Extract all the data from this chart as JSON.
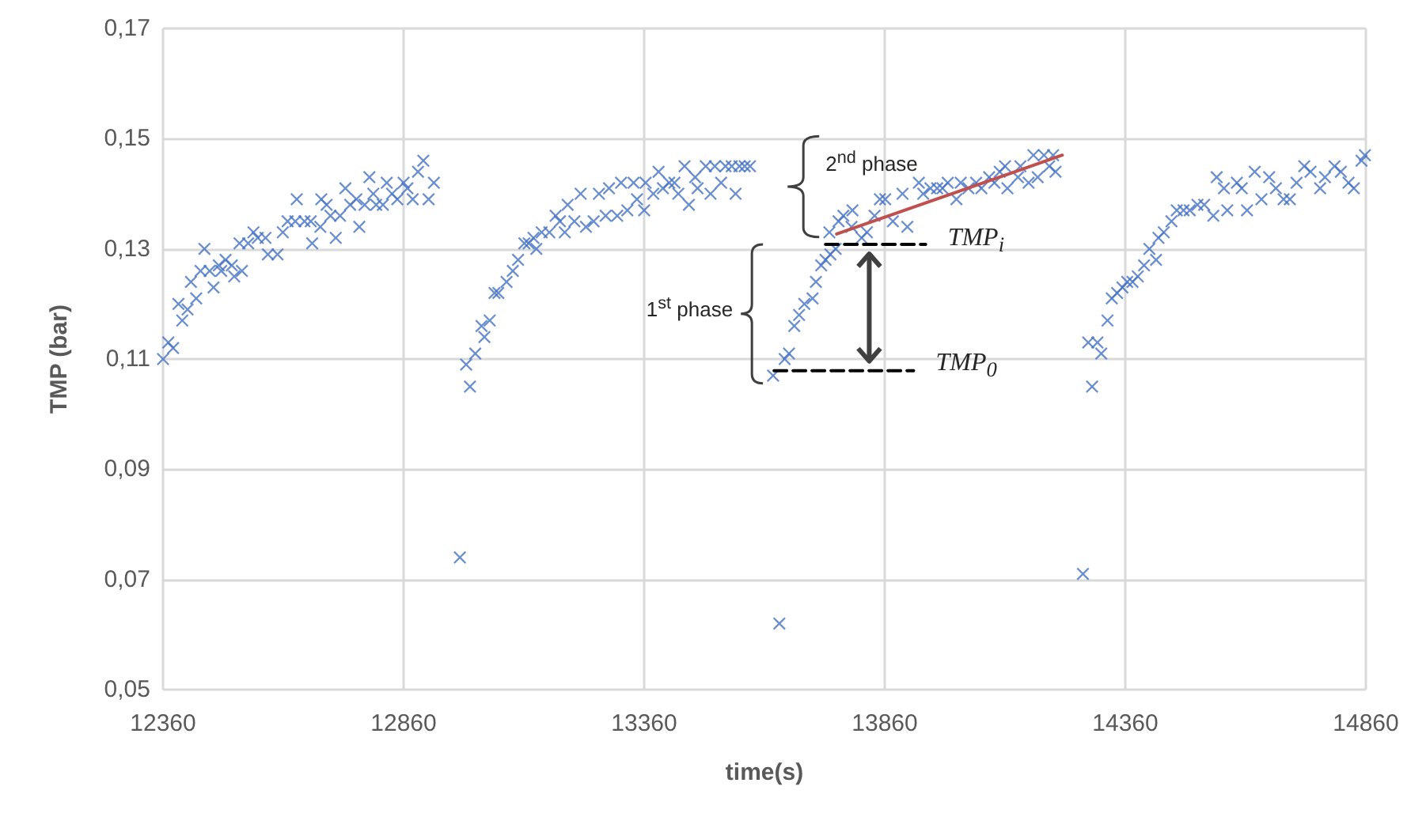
{
  "chart_data": {
    "type": "scatter",
    "xlabel": "time(s)",
    "ylabel": "TMP (bar)",
    "xlim": [
      12360,
      14860
    ],
    "xticks": [
      12360,
      12860,
      13360,
      13860,
      14360,
      14860
    ],
    "ylim": [
      0.05,
      0.17
    ],
    "yticks": [
      {
        "value": 0.05,
        "label": "0,05"
      },
      {
        "value": 0.07,
        "label": "0,07"
      },
      {
        "value": 0.09,
        "label": "0,09"
      },
      {
        "value": 0.11,
        "label": "0,11"
      },
      {
        "value": 0.13,
        "label": "0,13"
      },
      {
        "value": 0.15,
        "label": "0,15"
      },
      {
        "value": 0.17,
        "label": "0,17"
      }
    ],
    "grid": true,
    "marker": "cross",
    "series": [
      {
        "color": "#4472c4",
        "x": [
          12360,
          12371,
          12381,
          12400,
          12392,
          12411,
          12429,
          12418,
          12446,
          12438,
          12465,
          12457,
          12476,
          12490,
          12481,
          12508,
          12503,
          12524,
          12519,
          12537,
          12548,
          12557,
          12573,
          12578,
          12598,
          12609,
          12619,
          12638,
          12635,
          12654,
          12670,
          12667,
          12687,
          12689,
          12700,
          12708,
          12719,
          12728,
          12739,
          12749,
          12768,
          12762,
          12779,
          12789,
          12797,
          12803,
          12817,
          12825,
          12836,
          12847,
          12860,
          12868,
          12879,
          12890,
          12901,
          12912,
          12923,
          12977,
          12998,
          12990,
          13009,
          13028,
          13022,
          13039,
          13049,
          13057,
          13074,
          13087,
          13098,
          13111,
          13120,
          13136,
          13130,
          13147,
          13163,
          13176,
          13185,
          13195,
          13201,
          13215,
          13228,
          13239,
          13255,
          13266,
          13280,
          13287,
          13304,
          13312,
          13325,
          13338,
          13345,
          13360,
          13363,
          13379,
          13390,
          13399,
          13412,
          13423,
          13431,
          13444,
          13453,
          13466,
          13471,
          13488,
          13498,
          13507,
          13520,
          13529,
          13542,
          13550,
          13558,
          13569,
          13580,
          13641,
          13628,
          13652,
          13661,
          13672,
          13682,
          13693,
          13710,
          13717,
          13728,
          13737,
          13747,
          13758,
          13745,
          13764,
          13774,
          13793,
          13791,
          13812,
          13823,
          13839,
          13850,
          13861,
          13877,
          13897,
          13907,
          13931,
          13940,
          13955,
          13969,
          13980,
          13991,
          14009,
          14018,
          14034,
          14050,
          14061,
          14077,
          14088,
          14099,
          14110,
          14115,
          14137,
          14142,
          14159,
          14169,
          14178,
          14191,
          14202,
          14210,
          14215,
          14272,
          14291,
          14283,
          14310,
          14302,
          14323,
          14332,
          14343,
          14354,
          14364,
          14375,
          14386,
          14399,
          14410,
          14424,
          14429,
          14440,
          14456,
          14467,
          14481,
          14494,
          14510,
          14524,
          14543,
          14550,
          14565,
          14572,
          14592,
          14602,
          14613,
          14629,
          14643,
          14659,
          14673,
          14689,
          14702,
          14716,
          14732,
          14745,
          14765,
          14775,
          14795,
          14808,
          14824,
          14835,
          14851,
          14858
        ],
        "values": [
          0.11,
          0.113,
          0.112,
          0.117,
          0.12,
          0.119,
          0.121,
          0.124,
          0.13,
          0.126,
          0.123,
          0.126,
          0.127,
          0.128,
          0.126,
          0.125,
          0.127,
          0.126,
          0.131,
          0.131,
          0.133,
          0.132,
          0.132,
          0.129,
          0.129,
          0.133,
          0.135,
          0.139,
          0.135,
          0.135,
          0.131,
          0.135,
          0.134,
          0.139,
          0.138,
          0.136,
          0.132,
          0.136,
          0.141,
          0.138,
          0.134,
          0.139,
          0.138,
          0.143,
          0.14,
          0.138,
          0.138,
          0.142,
          0.14,
          0.139,
          0.142,
          0.141,
          0.139,
          0.144,
          0.146,
          0.139,
          0.142,
          0.074,
          0.105,
          0.109,
          0.111,
          0.114,
          0.116,
          0.117,
          0.122,
          0.122,
          0.124,
          0.126,
          0.128,
          0.131,
          0.131,
          0.13,
          0.132,
          0.133,
          0.133,
          0.136,
          0.135,
          0.133,
          0.138,
          0.135,
          0.14,
          0.134,
          0.135,
          0.14,
          0.136,
          0.141,
          0.136,
          0.142,
          0.137,
          0.142,
          0.139,
          0.137,
          0.142,
          0.14,
          0.144,
          0.141,
          0.142,
          0.142,
          0.14,
          0.145,
          0.138,
          0.143,
          0.141,
          0.145,
          0.14,
          0.145,
          0.142,
          0.145,
          0.145,
          0.14,
          0.145,
          0.145,
          0.145,
          0.062,
          0.107,
          0.11,
          0.111,
          0.116,
          0.118,
          0.12,
          0.121,
          0.124,
          0.127,
          0.128,
          0.129,
          0.13,
          0.133,
          0.135,
          0.136,
          0.137,
          0.134,
          0.132,
          0.133,
          0.136,
          0.139,
          0.139,
          0.135,
          0.14,
          0.134,
          0.142,
          0.14,
          0.141,
          0.141,
          0.141,
          0.142,
          0.139,
          0.142,
          0.141,
          0.142,
          0.141,
          0.143,
          0.142,
          0.144,
          0.145,
          0.141,
          0.143,
          0.145,
          0.142,
          0.147,
          0.143,
          0.147,
          0.145,
          0.147,
          0.144,
          0.071,
          0.105,
          0.113,
          0.111,
          0.113,
          0.117,
          0.121,
          0.122,
          0.123,
          0.124,
          0.124,
          0.125,
          0.127,
          0.13,
          0.128,
          0.132,
          0.133,
          0.135,
          0.137,
          0.137,
          0.137,
          0.138,
          0.138,
          0.136,
          0.143,
          0.141,
          0.137,
          0.142,
          0.141,
          0.137,
          0.144,
          0.139,
          0.143,
          0.141,
          0.139,
          0.139,
          0.142,
          0.145,
          0.144,
          0.141,
          0.143,
          0.145,
          0.144,
          0.142,
          0.141,
          0.146,
          0.147
        ]
      },
      {
        "type": "line",
        "color": "#c0504d",
        "marker": "none",
        "line_style": "solid",
        "x": [
          13760,
          14229
        ],
        "values": [
          0.1327,
          0.147
        ]
      },
      {
        "type": "line",
        "color": "#000000",
        "marker": "none",
        "line_style": "dashed",
        "x": [
          13737,
          13945
        ],
        "values": [
          0.1308,
          0.1308
        ]
      },
      {
        "type": "line",
        "color": "#000000",
        "marker": "none",
        "line_style": "dashed",
        "x": [
          13630,
          13920
        ],
        "values": [
          0.1079,
          0.1079
        ]
      }
    ],
    "annotations": [
      {
        "text": "2$^{nd}$ phase",
        "x": 13760,
        "y": 0.1327
      },
      "1$^{st}$ phase",
      "TMP$_{i}$",
      "TMP$_{0}$"
    ]
  }
}
